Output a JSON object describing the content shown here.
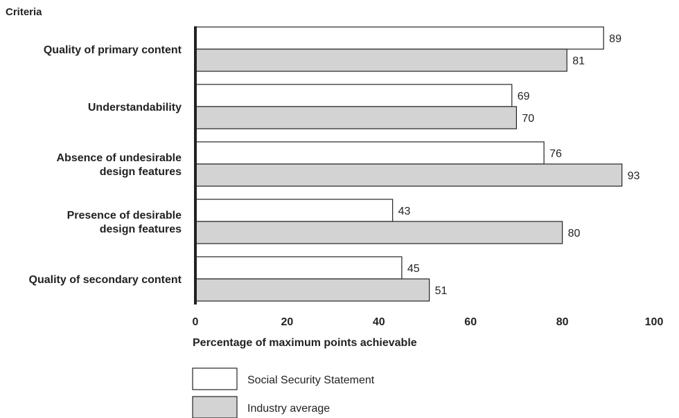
{
  "chart_data": {
    "type": "bar",
    "orientation": "horizontal",
    "ylabel": "Criteria",
    "xlabel": "Percentage of maximum points achievable",
    "categories": [
      [
        "Quality of primary content"
      ],
      [
        "Understandability"
      ],
      [
        "Absence of undesirable",
        "design features"
      ],
      [
        "Presence of desirable",
        "design features"
      ],
      [
        "Quality of secondary content"
      ]
    ],
    "series": [
      {
        "name": "Social Security Statement",
        "color": "#ffffff",
        "values": [
          89,
          69,
          76,
          43,
          45
        ]
      },
      {
        "name": "Industry average",
        "color": "#d3d3d3",
        "values": [
          81,
          70,
          93,
          80,
          51
        ]
      }
    ],
    "xlim": [
      0,
      100
    ],
    "xticks": [
      "0",
      "20",
      "40",
      "60",
      "80",
      "100"
    ],
    "grid": false,
    "legend_position": "bottom-left"
  }
}
